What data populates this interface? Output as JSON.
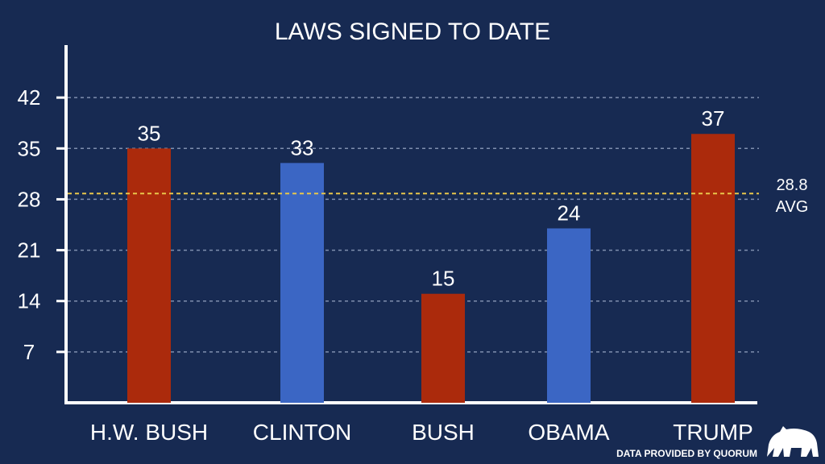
{
  "chart_data": {
    "type": "bar",
    "title": "LAWS SIGNED TO DATE",
    "categories": [
      "H.W. BUSH",
      "CLINTON",
      "BUSH",
      "OBAMA",
      "TRUMP"
    ],
    "values": [
      35,
      33,
      15,
      24,
      37
    ],
    "value_labels": [
      "35",
      "33",
      "15",
      "24",
      "37"
    ],
    "bar_colors": [
      "#ab2a0c",
      "#3b66c4",
      "#ab2a0c",
      "#3b66c4",
      "#ab2a0c"
    ],
    "ylim": [
      0,
      49
    ],
    "yticks": [
      7,
      14,
      21,
      28,
      35,
      42
    ],
    "ytick_labels": [
      "7",
      "14",
      "21",
      "28",
      "35",
      "42"
    ],
    "grid": true,
    "average": {
      "value": 28.8,
      "label_value": "28.8",
      "label_text": "AVG",
      "color": "#e8c64a"
    },
    "xlabel": "",
    "ylabel": ""
  },
  "footer": {
    "source": "DATA PROVIDED BY QUORUM",
    "logo": "bear-logo-icon"
  },
  "colors": {
    "background": "#172a52",
    "text": "#ffffff",
    "grid": "#7f8fae"
  }
}
